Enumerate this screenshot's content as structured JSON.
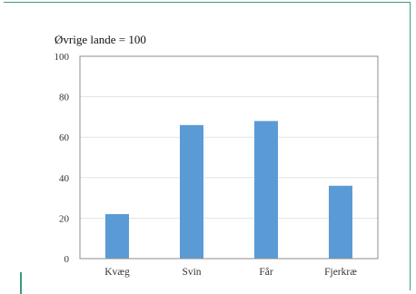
{
  "chart_data": {
    "type": "bar",
    "title": "Øvrige lande = 100",
    "categories": [
      "Kvæg",
      "Svin",
      "Får",
      "Fjerkræ"
    ],
    "values": [
      22,
      66,
      68,
      36
    ],
    "ylim": [
      0,
      100
    ],
    "yticks": [
      "0",
      "20",
      "40",
      "60",
      "80",
      "100"
    ],
    "grid": true,
    "bar_color": "#5b9bd5"
  }
}
